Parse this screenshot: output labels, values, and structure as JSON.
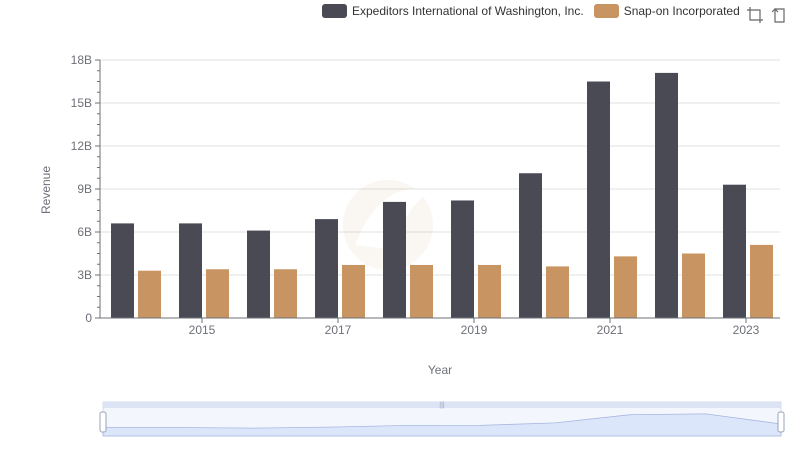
{
  "chart_data": {
    "type": "bar",
    "xlabel": "Year",
    "ylabel": "Revenue",
    "x_tick_labels": [
      "2015",
      "2017",
      "2019",
      "2021",
      "2023"
    ],
    "categories": [
      2014,
      2015,
      2016,
      2017,
      2018,
      2019,
      2020,
      2021,
      2022,
      2023
    ],
    "y_ticks": [
      "0",
      "3B",
      "6B",
      "9B",
      "12B",
      "15B",
      "18B"
    ],
    "ylim": [
      0,
      18
    ],
    "y_unit": "billions",
    "grid": true,
    "legend_position": "top-right",
    "series": [
      {
        "name": "Expeditors International of Washington, Inc.",
        "color": "#4a4a55",
        "values": [
          6.6,
          6.6,
          6.1,
          6.9,
          8.1,
          8.2,
          10.1,
          16.5,
          17.1,
          9.3
        ]
      },
      {
        "name": "Snap-on Incorporated",
        "color": "#c89461",
        "values": [
          3.3,
          3.4,
          3.4,
          3.7,
          3.7,
          3.7,
          3.6,
          4.3,
          4.5,
          5.1
        ]
      }
    ]
  }
}
